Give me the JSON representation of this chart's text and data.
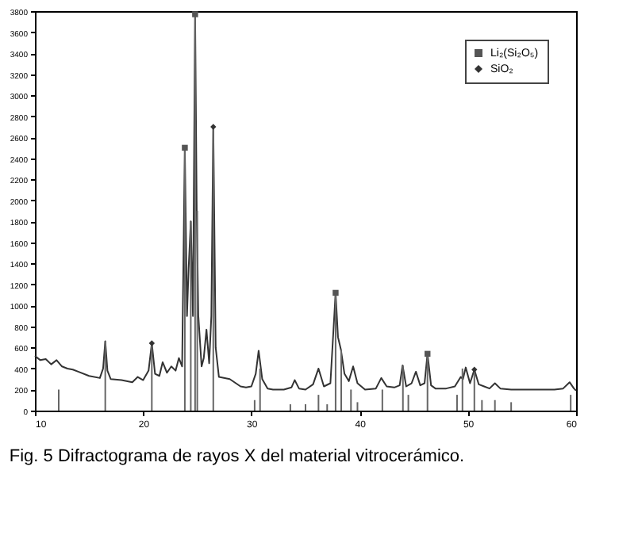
{
  "chart_data": {
    "type": "line",
    "title": "Fig. 5 Difractograma de rayos X del material vitrocerámico.",
    "xlim": [
      10,
      60
    ],
    "xticks": [
      10,
      20,
      30,
      40,
      50,
      60
    ],
    "ylim": [
      0,
      3800
    ],
    "yticks": [
      0,
      200,
      400,
      600,
      800,
      1000,
      1200,
      1400,
      1600,
      1800,
      2000,
      2200,
      2400,
      2600,
      2800,
      3000,
      3200,
      3400,
      3600,
      3800
    ],
    "grid": false,
    "legend": "top right",
    "marker": "none",
    "line_style": "solid",
    "series": [
      {
        "color": "#333333",
        "x": [
          10,
          10.5,
          11,
          11.5,
          12,
          12.5,
          13,
          13.5,
          14,
          15,
          16,
          16.3,
          16.5,
          16.7,
          17,
          18,
          19,
          19.5,
          20,
          20.5,
          20.8,
          21.1,
          21.5,
          21.8,
          22.2,
          22.6,
          23,
          23.3,
          23.6,
          23.85,
          24.05,
          24.2,
          24.4,
          24.6,
          24.8,
          24.95,
          25.1,
          25.4,
          25.6,
          25.85,
          26.1,
          26.3,
          26.48,
          26.7,
          27,
          28,
          29,
          29.5,
          30,
          30.4,
          30.67,
          31,
          31.5,
          32,
          33,
          33.7,
          34,
          34.4,
          35,
          35.7,
          36.2,
          36.7,
          37.3,
          37.78,
          38,
          38.27,
          38.6,
          39,
          39.4,
          39.8,
          40.5,
          41.5,
          42,
          42.5,
          43.2,
          43.7,
          43.97,
          44.3,
          44.8,
          45.2,
          45.6,
          46,
          46.27,
          46.6,
          47,
          48,
          48.8,
          49.34,
          49.55,
          49.8,
          50.2,
          50.6,
          51,
          51.5,
          52,
          52.5,
          53,
          54,
          55,
          56,
          57,
          58,
          58.8,
          59.4,
          59.8,
          60
        ],
        "values": [
          520,
          480,
          490,
          440,
          480,
          420,
          400,
          390,
          370,
          330,
          310,
          400,
          660,
          380,
          300,
          290,
          270,
          320,
          290,
          380,
          640,
          350,
          330,
          460,
          360,
          420,
          380,
          500,
          420,
          2500,
          900,
          1350,
          1800,
          900,
          3770,
          1900,
          900,
          420,
          500,
          770,
          450,
          900,
          2700,
          600,
          320,
          300,
          230,
          220,
          230,
          350,
          570,
          300,
          210,
          200,
          200,
          220,
          290,
          210,
          200,
          250,
          400,
          230,
          260,
          1120,
          700,
          580,
          350,
          280,
          420,
          260,
          200,
          210,
          310,
          230,
          220,
          240,
          430,
          230,
          260,
          370,
          240,
          260,
          540,
          240,
          210,
          210,
          230,
          320,
          300,
          410,
          260,
          390,
          250,
          230,
          210,
          260,
          210,
          200,
          200,
          200,
          200,
          200,
          210,
          270,
          210,
          190
        ]
      },
      {
        "type": "bar",
        "color": "#666666",
        "x": [
          12.2,
          16.5,
          20.8,
          23.85,
          24.4,
          24.8,
          25.0,
          26.48,
          30.3,
          30.8,
          33.6,
          35.0,
          36.2,
          37.0,
          37.78,
          38.3,
          39.2,
          39.8,
          42.1,
          44.0,
          44.5,
          46.27,
          49.0,
          49.5,
          50.6,
          51.3,
          52.5,
          54.0,
          59.5
        ],
        "values": [
          200,
          660,
          640,
          2500,
          1800,
          3770,
          1900,
          2700,
          100,
          400,
          60,
          60,
          150,
          60,
          1120,
          580,
          200,
          80,
          200,
          430,
          150,
          540,
          150,
          400,
          390,
          100,
          100,
          80,
          150
        ]
      },
      {
        "type": "scatter",
        "name": "Li₂(Si₂O₅)",
        "marker": "square",
        "color": "#555555",
        "x": [
          23.85,
          24.8,
          37.78,
          46.27
        ],
        "values": [
          2500,
          3770,
          1120,
          540
        ]
      },
      {
        "type": "scatter",
        "name": "SiO₂",
        "marker": "diamond",
        "color": "#333333",
        "x": [
          20.8,
          26.48,
          50.6
        ],
        "values": [
          640,
          2700,
          390
        ]
      }
    ]
  }
}
